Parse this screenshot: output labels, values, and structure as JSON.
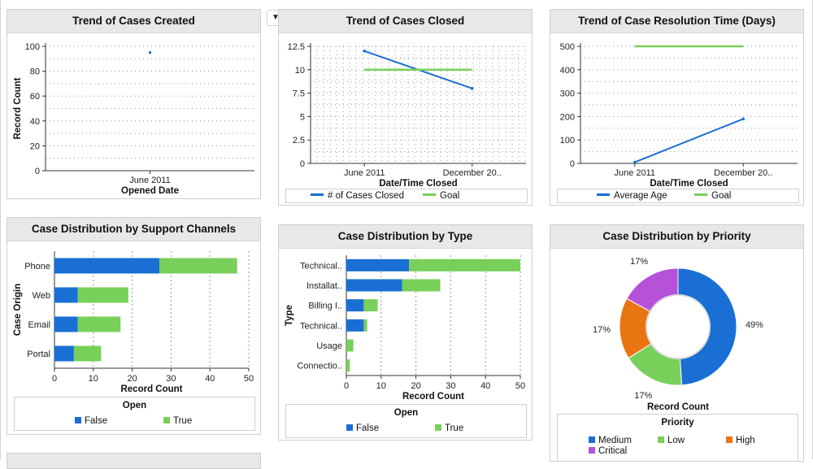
{
  "colors": {
    "blue": "#1a6fd4",
    "green": "#78cf5a",
    "orange": "#e87511",
    "purple": "#b552d9",
    "grid": "#9a9a9a",
    "axis": "#333333"
  },
  "collapse_icon": "▼",
  "chart_data": [
    {
      "id": "created",
      "type": "scatter",
      "title": "Trend of Cases Created",
      "xlabel": "Opened Date",
      "ylabel": "Record Count",
      "categories": [
        "June 2011"
      ],
      "series": [
        {
          "name": "Record Count",
          "values": [
            95
          ]
        }
      ],
      "ylim": [
        0,
        100
      ],
      "yticks": [
        0,
        20,
        40,
        60,
        80,
        100
      ]
    },
    {
      "id": "closed",
      "type": "line",
      "title": "Trend of Cases Closed",
      "xlabel": "Date/Time Closed",
      "ylabel": "",
      "categories": [
        "June 2011",
        "December 20.."
      ],
      "series": [
        {
          "name": "# of Cases Closed",
          "values": [
            12,
            8
          ]
        },
        {
          "name": "Goal",
          "values": [
            10,
            10
          ]
        }
      ],
      "ylim": [
        0,
        12.5
      ],
      "yticks": [
        0,
        2.5,
        5,
        7.5,
        10,
        12.5
      ],
      "ytick_labels": [
        "0",
        "2.5",
        "5",
        "7.5",
        "10",
        "12.5"
      ],
      "legend": [
        "# of Cases Closed",
        "Goal"
      ]
    },
    {
      "id": "resolution",
      "type": "line",
      "title": "Trend of Case Resolution Time (Days)",
      "xlabel": "Date/Time Closed",
      "ylabel": "",
      "categories": [
        "June 2011",
        "December 20.."
      ],
      "series": [
        {
          "name": "Average Age",
          "values": [
            5,
            190
          ]
        },
        {
          "name": "Goal",
          "values": [
            500,
            500
          ]
        }
      ],
      "ylim": [
        0,
        500
      ],
      "yticks": [
        0,
        100,
        200,
        300,
        400,
        500
      ],
      "legend": [
        "Average Age",
        "Goal"
      ]
    },
    {
      "id": "channels",
      "type": "bar",
      "orientation": "horizontal",
      "stacked": true,
      "title": "Case Distribution by Support Channels",
      "xlabel": "Record Count",
      "ylabel": "Case Origin",
      "categories": [
        "Phone",
        "Web",
        "Email",
        "Portal"
      ],
      "series": [
        {
          "name": "False",
          "values": [
            27,
            6,
            6,
            5
          ]
        },
        {
          "name": "True",
          "values": [
            20,
            13,
            11,
            7
          ]
        }
      ],
      "xlim": [
        0,
        50
      ],
      "xticks": [
        0,
        10,
        20,
        30,
        40,
        50
      ],
      "legend_title": "Open",
      "legend": [
        "False",
        "True"
      ]
    },
    {
      "id": "type",
      "type": "bar",
      "orientation": "horizontal",
      "stacked": true,
      "title": "Case Distribution by Type",
      "xlabel": "Record Count",
      "ylabel": "Type",
      "categories": [
        "Technical..",
        "Installat..",
        "Billing I..",
        "Technical..",
        "Usage",
        "Connectio.."
      ],
      "series": [
        {
          "name": "False",
          "values": [
            18,
            16,
            5,
            5,
            0,
            0
          ]
        },
        {
          "name": "True",
          "values": [
            32,
            11,
            4,
            1,
            2,
            1
          ]
        }
      ],
      "xlim": [
        0,
        50
      ],
      "xticks": [
        0,
        10,
        20,
        30,
        40,
        50
      ],
      "legend_title": "Open",
      "legend": [
        "False",
        "True"
      ]
    },
    {
      "id": "priority",
      "type": "pie",
      "donut": true,
      "title": "Case Distribution by Priority",
      "xlabel": "Record Count",
      "categories": [
        "Medium",
        "Low",
        "High",
        "Critical"
      ],
      "values": [
        49,
        17,
        17,
        17
      ],
      "value_labels": [
        "49%",
        "17%",
        "17%",
        "17%"
      ],
      "legend_title": "Priority",
      "legend": [
        "Medium",
        "Low",
        "High",
        "Critical"
      ]
    }
  ]
}
